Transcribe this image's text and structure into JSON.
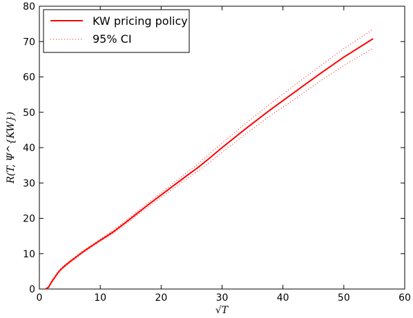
{
  "chart_data": {
    "type": "line",
    "title": "",
    "xlabel": "√T",
    "ylabel": "R(T, Ψ^{KW})",
    "xlim": [
      0,
      60
    ],
    "ylim": [
      0,
      80
    ],
    "xticks": [
      "0",
      "10",
      "20",
      "30",
      "40",
      "50",
      "60"
    ],
    "yticks": [
      "0",
      "10",
      "20",
      "30",
      "40",
      "50",
      "60",
      "70",
      "80"
    ],
    "grid": false,
    "legend_position": "top-left",
    "series": [
      {
        "name": "KW pricing policy",
        "style": "solid",
        "color": "#ff0000",
        "x": [
          1.0,
          1.5,
          2.0,
          2.5,
          3.0,
          3.5,
          4.0,
          5.0,
          6.0,
          7.0,
          8.0,
          10.0,
          12.0,
          14.0,
          16.0,
          18.0,
          20.0,
          22.0,
          24.0,
          26.0,
          28.0,
          30.0,
          34.0,
          38.0,
          42.0,
          46.0,
          50.0,
          54.8
        ],
        "y": [
          0.0,
          0.5,
          2.0,
          3.2,
          4.5,
          5.5,
          6.3,
          7.7,
          9.0,
          10.3,
          11.5,
          13.8,
          16.0,
          18.6,
          21.3,
          24.0,
          26.6,
          29.2,
          31.8,
          34.3,
          37.1,
          40.0,
          45.5,
          50.8,
          55.8,
          60.8,
          65.6,
          70.8
        ]
      },
      {
        "name": "95% CI",
        "style": "dotted",
        "color": "#ff0000",
        "x": [
          1.0,
          1.5,
          2.0,
          2.5,
          3.0,
          3.5,
          4.0,
          5.0,
          6.0,
          7.0,
          8.0,
          10.0,
          12.0,
          14.0,
          16.0,
          18.0,
          20.0,
          22.0,
          24.0,
          26.0,
          28.0,
          30.0,
          34.0,
          38.0,
          42.0,
          46.0,
          50.0,
          54.8
        ],
        "y": [
          0.1,
          0.7,
          2.3,
          3.5,
          4.8,
          5.8,
          6.6,
          8.0,
          9.3,
          10.6,
          11.8,
          14.1,
          16.4,
          19.1,
          21.8,
          24.6,
          27.3,
          30.0,
          32.7,
          35.3,
          38.3,
          41.3,
          47.0,
          52.5,
          57.8,
          62.9,
          68.0,
          73.5
        ]
      },
      {
        "name": "",
        "style": "dotted",
        "color": "#ff0000",
        "x": [
          1.0,
          1.5,
          2.0,
          2.5,
          3.0,
          3.5,
          4.0,
          5.0,
          6.0,
          7.0,
          8.0,
          10.0,
          12.0,
          14.0,
          16.0,
          18.0,
          20.0,
          22.0,
          24.0,
          26.0,
          28.0,
          30.0,
          34.0,
          38.0,
          42.0,
          46.0,
          50.0,
          54.8
        ],
        "y": [
          0.0,
          0.3,
          1.7,
          2.9,
          4.2,
          5.2,
          6.0,
          7.4,
          8.7,
          10.0,
          11.2,
          13.5,
          15.6,
          18.1,
          20.8,
          23.4,
          25.9,
          28.4,
          30.9,
          33.3,
          35.9,
          38.7,
          44.0,
          49.1,
          53.8,
          58.7,
          63.2,
          68.1
        ]
      }
    ]
  }
}
